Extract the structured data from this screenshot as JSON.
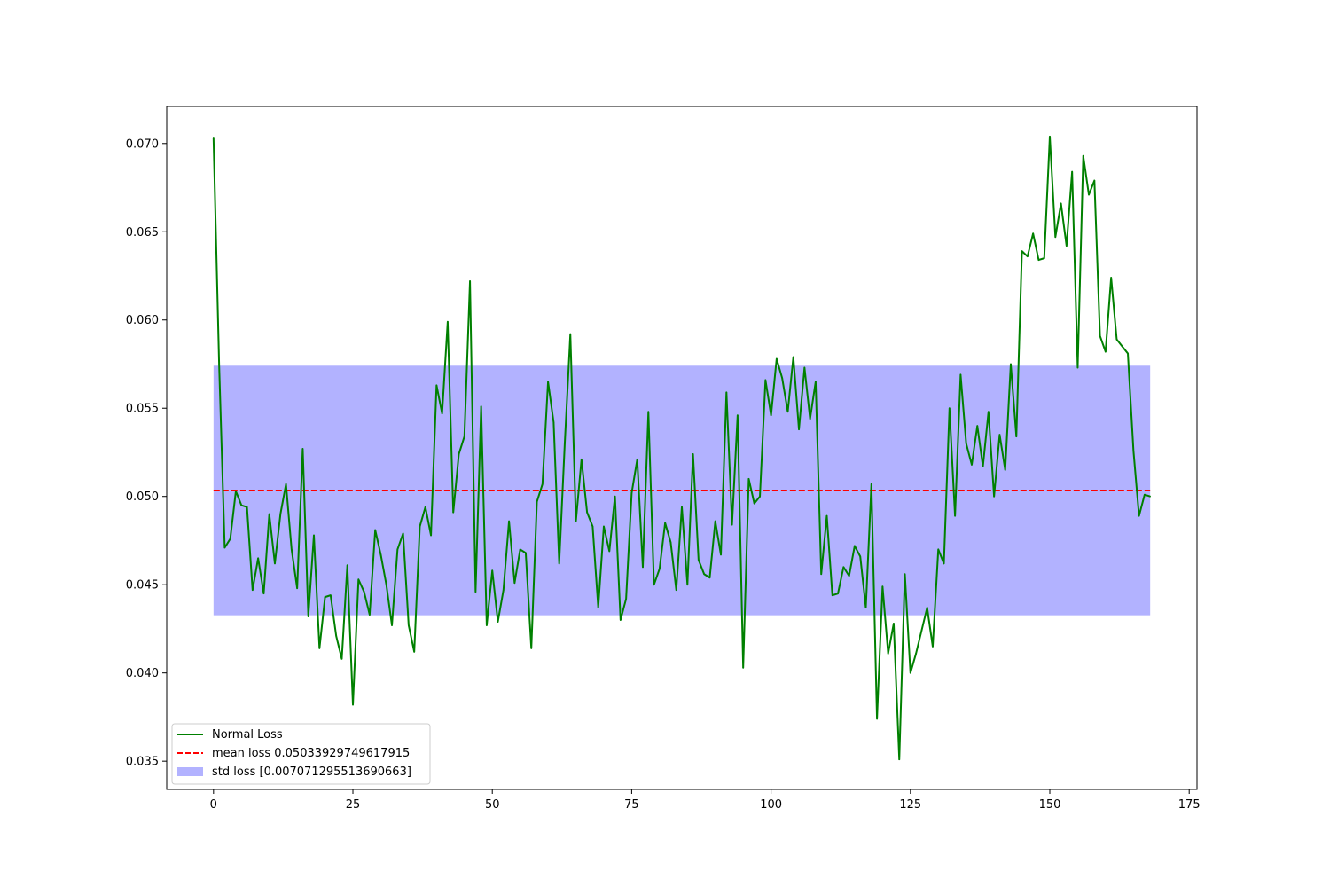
{
  "chart_data": {
    "type": "line",
    "title": "",
    "xlabel": "",
    "ylabel": "",
    "xlim": [
      -8.4,
      176.4
    ],
    "ylim": [
      0.0334,
      0.0721
    ],
    "xticks": [
      0,
      25,
      50,
      75,
      100,
      125,
      150,
      175
    ],
    "yticks": [
      0.035,
      0.04,
      0.045,
      0.05,
      0.055,
      0.06,
      0.065,
      0.07
    ],
    "xtick_labels": [
      "0",
      "25",
      "50",
      "75",
      "100",
      "125",
      "150",
      "175"
    ],
    "ytick_labels": [
      "0.035",
      "0.040",
      "0.045",
      "0.050",
      "0.055",
      "0.060",
      "0.065",
      "0.070"
    ],
    "grid": false,
    "legend_position": "lower-left",
    "series": [
      {
        "name": "Normal Loss",
        "kind": "line",
        "color": "#008000",
        "values": [
          0.0703,
          0.0575,
          0.0471,
          0.0476,
          0.0503,
          0.0495,
          0.0494,
          0.0447,
          0.0465,
          0.0445,
          0.049,
          0.0462,
          0.049,
          0.0507,
          0.047,
          0.0448,
          0.0527,
          0.0432,
          0.0478,
          0.0414,
          0.0443,
          0.0444,
          0.0421,
          0.0408,
          0.0461,
          0.0382,
          0.0453,
          0.0446,
          0.0433,
          0.0481,
          0.0467,
          0.045,
          0.0427,
          0.047,
          0.0479,
          0.0427,
          0.0412,
          0.0483,
          0.0494,
          0.0478,
          0.0563,
          0.0547,
          0.0599,
          0.0491,
          0.0524,
          0.0534,
          0.0622,
          0.0446,
          0.0551,
          0.0427,
          0.0458,
          0.0429,
          0.0447,
          0.0486,
          0.0451,
          0.047,
          0.0468,
          0.0414,
          0.0497,
          0.0507,
          0.0565,
          0.0542,
          0.0462,
          0.053,
          0.0592,
          0.0486,
          0.0521,
          0.0491,
          0.0483,
          0.0437,
          0.0483,
          0.0469,
          0.05,
          0.043,
          0.0442,
          0.0502,
          0.0521,
          0.046,
          0.0548,
          0.045,
          0.0459,
          0.0485,
          0.0474,
          0.0447,
          0.0494,
          0.045,
          0.0524,
          0.0464,
          0.0456,
          0.0454,
          0.0486,
          0.0467,
          0.0559,
          0.0484,
          0.0546,
          0.0403,
          0.051,
          0.0496,
          0.05,
          0.0566,
          0.0546,
          0.0578,
          0.0567,
          0.0548,
          0.0579,
          0.0538,
          0.0573,
          0.0544,
          0.0565,
          0.0456,
          0.0489,
          0.0444,
          0.0445,
          0.046,
          0.0455,
          0.0472,
          0.0466,
          0.0437,
          0.0507,
          0.0374,
          0.0449,
          0.0411,
          0.0428,
          0.0351,
          0.0456,
          0.04,
          0.0411,
          0.0424,
          0.0437,
          0.0415,
          0.047,
          0.0462,
          0.055,
          0.0489,
          0.0569,
          0.053,
          0.0518,
          0.054,
          0.0517,
          0.0548,
          0.05,
          0.0535,
          0.0515,
          0.0575,
          0.0534,
          0.0639,
          0.0636,
          0.0649,
          0.0634,
          0.0635,
          0.0704,
          0.0647,
          0.0666,
          0.0642,
          0.0684,
          0.0573,
          0.0693,
          0.0671,
          0.0679,
          0.0591,
          0.0582,
          0.0624,
          0.0589,
          0.0585,
          0.0581,
          0.0526,
          0.0489,
          0.0501,
          0.05
        ]
      },
      {
        "name": "mean loss 0.05033929749617915",
        "kind": "hline",
        "color": "#ff0000",
        "value": 0.05033929749617915,
        "x_range": [
          0,
          168
        ]
      },
      {
        "name": "std loss [0.007071295513690663]",
        "kind": "band",
        "color": "#0000ff",
        "opacity": 0.3,
        "lower": 0.04326800198248849,
        "upper": 0.05741059300986981,
        "x_range": [
          0,
          168
        ]
      }
    ]
  }
}
